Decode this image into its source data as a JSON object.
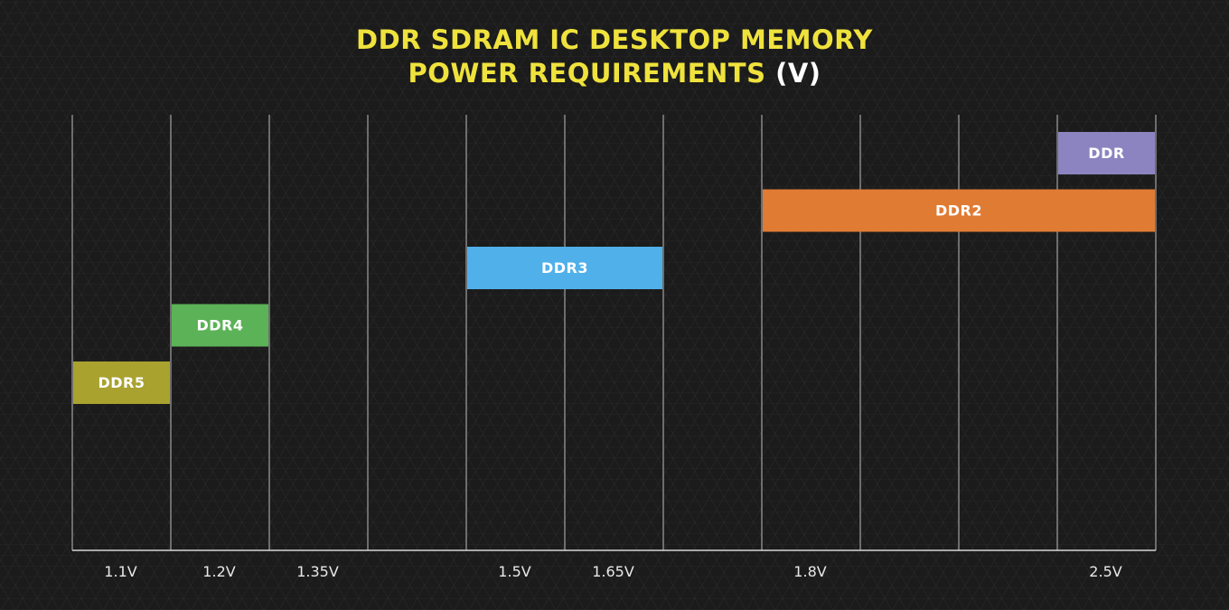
{
  "title": {
    "line1": "DDR SDRAM IC DESKTOP MEMORY",
    "line2": "POWER REQUIREMENTS",
    "unit": "(V)"
  },
  "chart_data": {
    "type": "bar",
    "orientation": "horizontal-range",
    "title": "DDR SDRAM IC DESKTOP MEMORY POWER REQUIREMENTS (V)",
    "tick_labels": [
      {
        "label": "1.1V",
        "column": 0
      },
      {
        "label": "1.2V",
        "column": 1
      },
      {
        "label": "1.35V",
        "column": 2
      },
      {
        "label": "1.5V",
        "column": 4
      },
      {
        "label": "1.65V",
        "column": 5
      },
      {
        "label": "1.8V",
        "column": 7
      },
      {
        "label": "2.5V",
        "column": 10
      }
    ],
    "columns": 11,
    "series": [
      {
        "name": "DDR5",
        "start_column": 0,
        "end_column": 1,
        "color": "#a9a22f",
        "row": 4
      },
      {
        "name": "DDR4",
        "start_column": 1,
        "end_column": 2,
        "color": "#5cb257",
        "row": 3
      },
      {
        "name": "DDR3",
        "start_column": 4,
        "end_column": 6,
        "color": "#4fb0ea",
        "row": 2
      },
      {
        "name": "DDR2",
        "start_column": 7,
        "end_column": 11,
        "color": "#e07b33",
        "row": 1
      },
      {
        "name": "DDR",
        "start_column": 10,
        "end_column": 11,
        "color": "#8c84c1",
        "row": 0
      }
    ],
    "grid": true
  }
}
